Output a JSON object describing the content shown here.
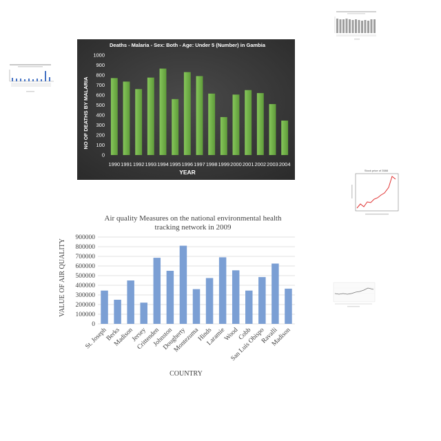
{
  "chart_data": [
    {
      "type": "bar",
      "title": "Deaths - Malaria - Sex: Both - Age: Under 5 (Number) in Gambia",
      "xlabel": "YEAR",
      "ylabel": "NO OF DEATHS BY MALARIA",
      "categories": [
        "1990",
        "1991",
        "1992",
        "1993",
        "1994",
        "1995",
        "1996",
        "1997",
        "1998",
        "1999",
        "2000",
        "2001",
        "2002",
        "2003",
        "2004"
      ],
      "values": [
        770,
        735,
        660,
        775,
        865,
        560,
        830,
        790,
        615,
        380,
        605,
        650,
        620,
        510,
        345
      ],
      "ylim": [
        0,
        1000
      ],
      "yticks": [
        "0",
        "100",
        "200",
        "300",
        "400",
        "500",
        "600",
        "700",
        "800",
        "900",
        "1000"
      ],
      "grid": false,
      "colors": {
        "background": "#3d3d3d",
        "bar": "#7cbf4a",
        "text": "#ffffff"
      }
    },
    {
      "type": "bar",
      "title": "Air quality Measures on the national environmental health tracking network in 2009",
      "title_lines": [
        "Air quality Measures on the national environmental health",
        "tracking network in 2009"
      ],
      "xlabel": "COUNTRY",
      "ylabel": "VALUE OF AIR QUALITY",
      "categories": [
        "St. Joseph",
        "Berks",
        "Madison",
        "Jersey",
        "Crittenden",
        "Johnston",
        "Dougherty",
        "Montezuma",
        "Hinds",
        "Laramie",
        "Wood",
        "Cobb",
        "San Luis Obispo",
        "Ravalli",
        "Madison"
      ],
      "values": [
        345000,
        250000,
        450000,
        220000,
        685000,
        550000,
        810000,
        360000,
        475000,
        690000,
        555000,
        345000,
        485000,
        625000,
        365000
      ],
      "ylim": [
        0,
        900000
      ],
      "yticks": [
        "0",
        "100000",
        "200000",
        "300000",
        "400000",
        "500000",
        "600000",
        "700000",
        "800000",
        "900000"
      ],
      "grid": true,
      "colors": {
        "bar": "#7b9fd4",
        "grid": "#d9d9d9",
        "text": "#404040"
      }
    }
  ],
  "thumbnails": [
    {
      "title": "Stock price of 3588"
    }
  ]
}
